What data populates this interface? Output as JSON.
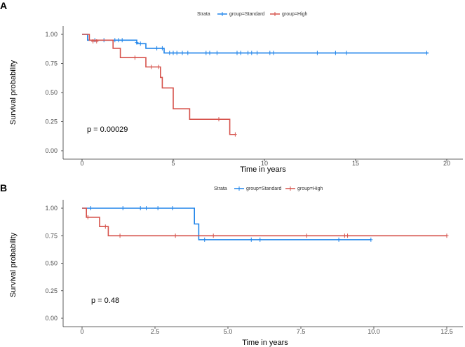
{
  "chart_data": [
    {
      "panel": "A",
      "type": "line",
      "subtype": "kaplan-meier",
      "legend_title": "Strata",
      "xlabel": "Time in years",
      "ylabel": "Survival probability",
      "xlim": [
        0,
        20
      ],
      "ylim": [
        0,
        1
      ],
      "xticks": [
        "0",
        "5",
        "10",
        "15",
        "20"
      ],
      "yticks": [
        "0.00",
        "0.25",
        "0.50",
        "0.75",
        "1.00"
      ],
      "pvalue": "p = 0.00029",
      "series": [
        {
          "name": "group=Standard",
          "color": "#1f84ea",
          "steps": [
            [
              0,
              1.0
            ],
            [
              0.3,
              0.95
            ],
            [
              1.8,
              0.95
            ],
            [
              3.0,
              0.92
            ],
            [
              3.5,
              0.88
            ],
            [
              4.5,
              0.84
            ],
            [
              19.0,
              0.84
            ]
          ],
          "censors": [
            [
              0.7,
              0.95
            ],
            [
              1.2,
              0.95
            ],
            [
              1.8,
              0.95
            ],
            [
              2.0,
              0.95
            ],
            [
              2.2,
              0.95
            ],
            [
              3.0,
              0.93
            ],
            [
              3.2,
              0.92
            ],
            [
              4.1,
              0.88
            ],
            [
              4.4,
              0.88
            ],
            [
              4.8,
              0.84
            ],
            [
              5.0,
              0.84
            ],
            [
              5.2,
              0.84
            ],
            [
              5.5,
              0.84
            ],
            [
              5.8,
              0.84
            ],
            [
              6.8,
              0.84
            ],
            [
              7.0,
              0.84
            ],
            [
              7.4,
              0.84
            ],
            [
              8.5,
              0.84
            ],
            [
              8.7,
              0.84
            ],
            [
              9.1,
              0.84
            ],
            [
              9.3,
              0.84
            ],
            [
              9.6,
              0.84
            ],
            [
              10.3,
              0.84
            ],
            [
              10.5,
              0.84
            ],
            [
              12.9,
              0.84
            ],
            [
              13.9,
              0.84
            ],
            [
              14.5,
              0.84
            ],
            [
              18.9,
              0.84
            ]
          ]
        },
        {
          "name": "group=High",
          "color": "#d6524b",
          "steps": [
            [
              0,
              1.0
            ],
            [
              0.4,
              0.95
            ],
            [
              1.7,
              0.88
            ],
            [
              2.1,
              0.8
            ],
            [
              3.5,
              0.72
            ],
            [
              4.3,
              0.63
            ],
            [
              4.4,
              0.54
            ],
            [
              5.0,
              0.36
            ],
            [
              5.9,
              0.27
            ],
            [
              8.1,
              0.14
            ],
            [
              8.4,
              0.14
            ]
          ],
          "censors": [
            [
              0.6,
              0.94
            ],
            [
              0.8,
              0.94
            ],
            [
              2.9,
              0.8
            ],
            [
              3.8,
              0.72
            ],
            [
              4.2,
              0.72
            ],
            [
              7.5,
              0.27
            ],
            [
              8.4,
              0.14
            ]
          ]
        }
      ]
    },
    {
      "panel": "B",
      "type": "line",
      "subtype": "kaplan-meier",
      "legend_title": "Strata",
      "xlabel": "Time in years",
      "ylabel": "Survival probability",
      "xlim": [
        0,
        12.5
      ],
      "ylim": [
        0,
        1
      ],
      "xticks": [
        "0",
        "2.5",
        "5.0",
        "7.5",
        "10.0",
        "12.5"
      ],
      "yticks": [
        "0.00",
        "0.25",
        "0.50",
        "0.75",
        "1.00"
      ],
      "pvalue": "p = 0.48",
      "series": [
        {
          "name": "group=Standard",
          "color": "#1f84ea",
          "steps": [
            [
              0,
              1.0
            ],
            [
              3.85,
              0.857
            ],
            [
              4.0,
              0.714
            ],
            [
              9.9,
              0.714
            ]
          ],
          "censors": [
            [
              0.3,
              1.0
            ],
            [
              1.4,
              1.0
            ],
            [
              2.0,
              1.0
            ],
            [
              2.2,
              1.0
            ],
            [
              2.6,
              1.0
            ],
            [
              3.1,
              1.0
            ],
            [
              4.2,
              0.714
            ],
            [
              5.8,
              0.714
            ],
            [
              6.1,
              0.714
            ],
            [
              8.8,
              0.714
            ],
            [
              9.9,
              0.714
            ]
          ]
        },
        {
          "name": "group=High",
          "color": "#d6524b",
          "steps": [
            [
              0,
              1.0
            ],
            [
              0.15,
              0.917
            ],
            [
              0.6,
              0.833
            ],
            [
              0.9,
              0.75
            ],
            [
              12.5,
              0.75
            ]
          ],
          "censors": [
            [
              0.2,
              0.917
            ],
            [
              0.8,
              0.833
            ],
            [
              1.3,
              0.75
            ],
            [
              3.2,
              0.75
            ],
            [
              4.5,
              0.75
            ],
            [
              7.7,
              0.75
            ],
            [
              9.0,
              0.75
            ],
            [
              9.1,
              0.75
            ],
            [
              12.5,
              0.75
            ]
          ]
        }
      ]
    }
  ]
}
